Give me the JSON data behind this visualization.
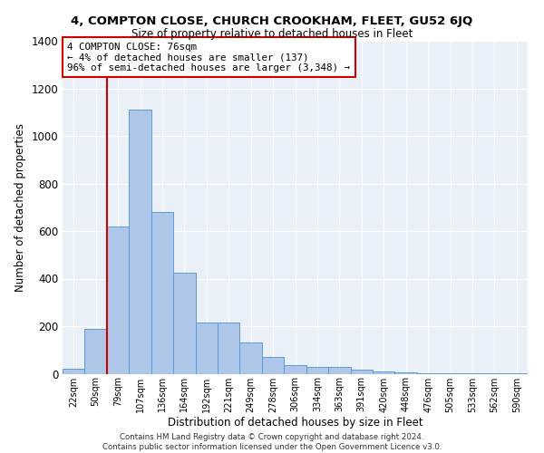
{
  "title1": "4, COMPTON CLOSE, CHURCH CROOKHAM, FLEET, GU52 6JQ",
  "title2": "Size of property relative to detached houses in Fleet",
  "xlabel": "Distribution of detached houses by size in Fleet",
  "ylabel": "Number of detached properties",
  "footnote": "Contains HM Land Registry data © Crown copyright and database right 2024.\nContains public sector information licensed under the Open Government Licence v3.0.",
  "bar_color": "#aec6e8",
  "bar_edge_color": "#5b9bd5",
  "background_color": "#eaf0f8",
  "categories": [
    "22sqm",
    "50sqm",
    "79sqm",
    "107sqm",
    "136sqm",
    "164sqm",
    "192sqm",
    "221sqm",
    "249sqm",
    "278sqm",
    "306sqm",
    "334sqm",
    "363sqm",
    "391sqm",
    "420sqm",
    "448sqm",
    "476sqm",
    "505sqm",
    "533sqm",
    "562sqm",
    "590sqm"
  ],
  "values": [
    20,
    190,
    620,
    1110,
    680,
    425,
    215,
    215,
    130,
    70,
    35,
    30,
    28,
    18,
    10,
    5,
    3,
    2,
    2,
    1,
    2
  ],
  "ylim": [
    0,
    1400
  ],
  "yticks": [
    0,
    200,
    400,
    600,
    800,
    1000,
    1200,
    1400
  ],
  "property_line_x": 1.5,
  "annotation_title": "4 COMPTON CLOSE: 76sqm",
  "annotation_line1": "← 4% of detached houses are smaller (137)",
  "annotation_line2": "96% of semi-detached houses are larger (3,348) →",
  "vline_color": "#cc0000",
  "annotation_border_color": "#cc0000"
}
